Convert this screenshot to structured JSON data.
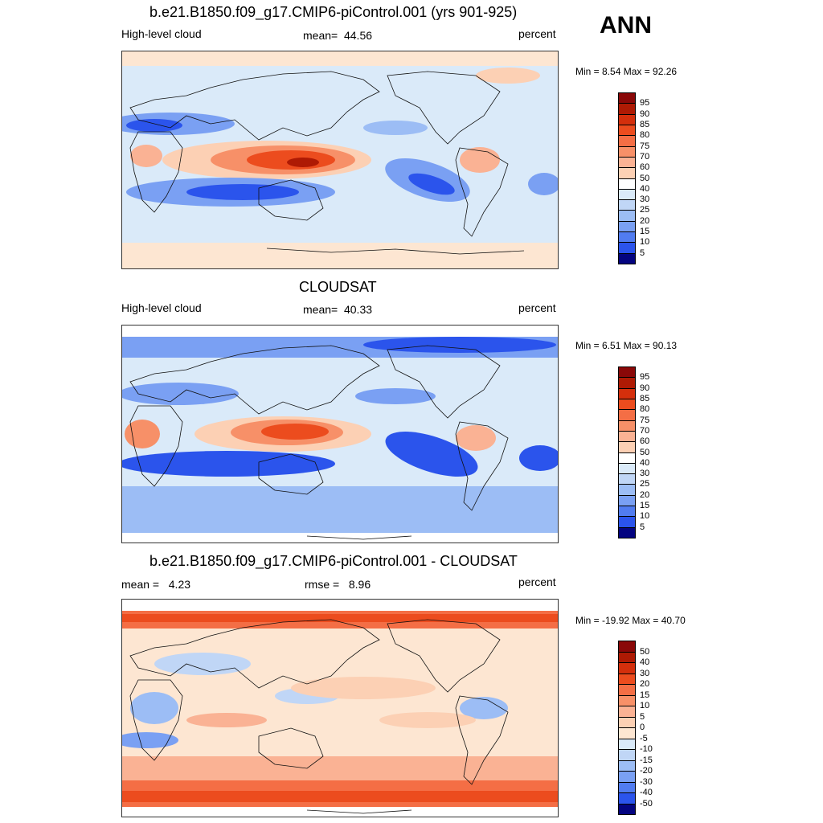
{
  "season": "ANN",
  "colors": {
    "pos": [
      "#fde6d2",
      "#fcd0b4",
      "#fab294",
      "#f79068",
      "#f46e45",
      "#ec4c1e",
      "#d42f0c",
      "#ae1a04",
      "#8a0808"
    ],
    "neg": [
      "#daeaf9",
      "#c0d6f6",
      "#9cbdf5",
      "#7aa0f3",
      "#517cf0",
      "#2b54ec",
      "#0f2ee0",
      "#0716aa",
      "#040480"
    ],
    "ocean": "#daeaf9",
    "coast": "#111111"
  },
  "panels": [
    {
      "id": "model",
      "title": "b.e21.B1850.f09_g17.CMIP6-piControl.001 (yrs 901-925)",
      "left": "High-level cloud",
      "center_label": "mean=",
      "center_value": "44.56",
      "units": "percent",
      "stats": "Min =   8.54 Max =  92.26",
      "colorbar_levels": [
        "95",
        "90",
        "85",
        "80",
        "75",
        "70",
        "60",
        "50",
        "40",
        "30",
        "25",
        "20",
        "15",
        "10",
        "5"
      ]
    },
    {
      "id": "obs",
      "title": "CLOUDSAT",
      "left": "High-level cloud",
      "center_label": "mean=",
      "center_value": "40.33",
      "units": "percent",
      "stats": "Min =   6.51 Max =  90.13",
      "colorbar_levels": [
        "95",
        "90",
        "85",
        "80",
        "75",
        "70",
        "60",
        "50",
        "40",
        "30",
        "25",
        "20",
        "15",
        "10",
        "5"
      ]
    },
    {
      "id": "diff",
      "title": "b.e21.B1850.f09_g17.CMIP6-piControl.001 - CLOUDSAT",
      "left_label": "mean =",
      "left_value": "4.23",
      "center_label": "rmse =",
      "center_value": "8.96",
      "units": "percent",
      "stats": "Min = -19.92 Max =  40.70",
      "colorbar_levels": [
        "50",
        "40",
        "30",
        "20",
        "15",
        "10",
        "5",
        "0",
        "-5",
        "-10",
        "-15",
        "-20",
        "-30",
        "-40",
        "-50"
      ]
    }
  ]
}
